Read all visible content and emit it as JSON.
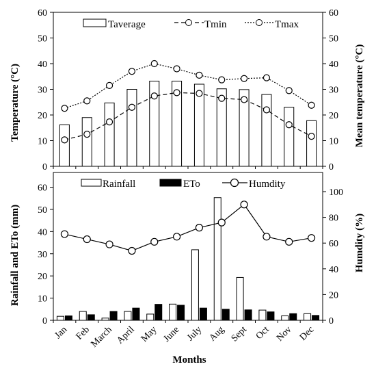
{
  "chart_data": [
    {
      "type": "bar",
      "panel": "temperature",
      "categories": [
        "Jan",
        "Feb",
        "March",
        "April",
        "May",
        "June",
        "July",
        "Aug",
        "Sept",
        "Oct",
        "Nov",
        "Dec"
      ],
      "ylabel": "Temperature (°C)",
      "y2label": "Mean temperature (°C)",
      "ylim": [
        0,
        60
      ],
      "yticks": [
        0,
        10,
        20,
        30,
        40,
        50,
        60
      ],
      "series": [
        {
          "name": "Taverage",
          "type": "bar",
          "color": "#ffffff",
          "values": [
            16.2,
            19.0,
            24.7,
            30.0,
            33.2,
            33.2,
            32.0,
            30.2,
            29.9,
            28.0,
            23.0,
            17.8
          ]
        },
        {
          "name": "Tmin",
          "type": "line",
          "dash": "dashed",
          "color": "#000000",
          "values": [
            10.3,
            12.5,
            17.3,
            23.0,
            27.4,
            28.7,
            28.4,
            26.5,
            26.0,
            22.0,
            16.2,
            11.7
          ]
        },
        {
          "name": "Tmax",
          "type": "line",
          "dash": "dotted",
          "color": "#000000",
          "values": [
            22.6,
            25.5,
            31.5,
            37.0,
            40.0,
            38.0,
            35.5,
            33.7,
            34.2,
            34.5,
            29.5,
            23.8
          ]
        }
      ]
    },
    {
      "type": "bar",
      "panel": "rainfall",
      "categories": [
        "Jan",
        "Feb",
        "March",
        "April",
        "May",
        "June",
        "July",
        "Aug",
        "Sept",
        "Oct",
        "Nov",
        "Dec"
      ],
      "xlabel": "Months",
      "ylabel": "Rainfall and ETo (mm)",
      "y2label": "Humdity (%)",
      "ylim": [
        0,
        60
      ],
      "yticks": [
        0,
        10,
        20,
        30,
        40,
        50,
        60
      ],
      "y2lim": [
        0,
        100
      ],
      "y2ticks": [
        0,
        20,
        40,
        60,
        80,
        100
      ],
      "series": [
        {
          "name": "Rainfall",
          "type": "bar",
          "color": "#ffffff",
          "values": [
            1.8,
            4.0,
            1.0,
            4.0,
            2.8,
            7.3,
            31.8,
            55.3,
            19.3,
            4.6,
            2.0,
            3.0
          ]
        },
        {
          "name": "ETo",
          "type": "bar",
          "color": "#000000",
          "values": [
            2.0,
            2.5,
            4.0,
            5.5,
            7.2,
            6.8,
            5.5,
            5.0,
            4.7,
            3.8,
            3.0,
            2.2
          ]
        },
        {
          "name": "Humdity",
          "type": "line",
          "axis": "right",
          "color": "#000000",
          "values": [
            67,
            63,
            59,
            54,
            61,
            65,
            72,
            76,
            90,
            65,
            61,
            64
          ]
        }
      ]
    }
  ]
}
